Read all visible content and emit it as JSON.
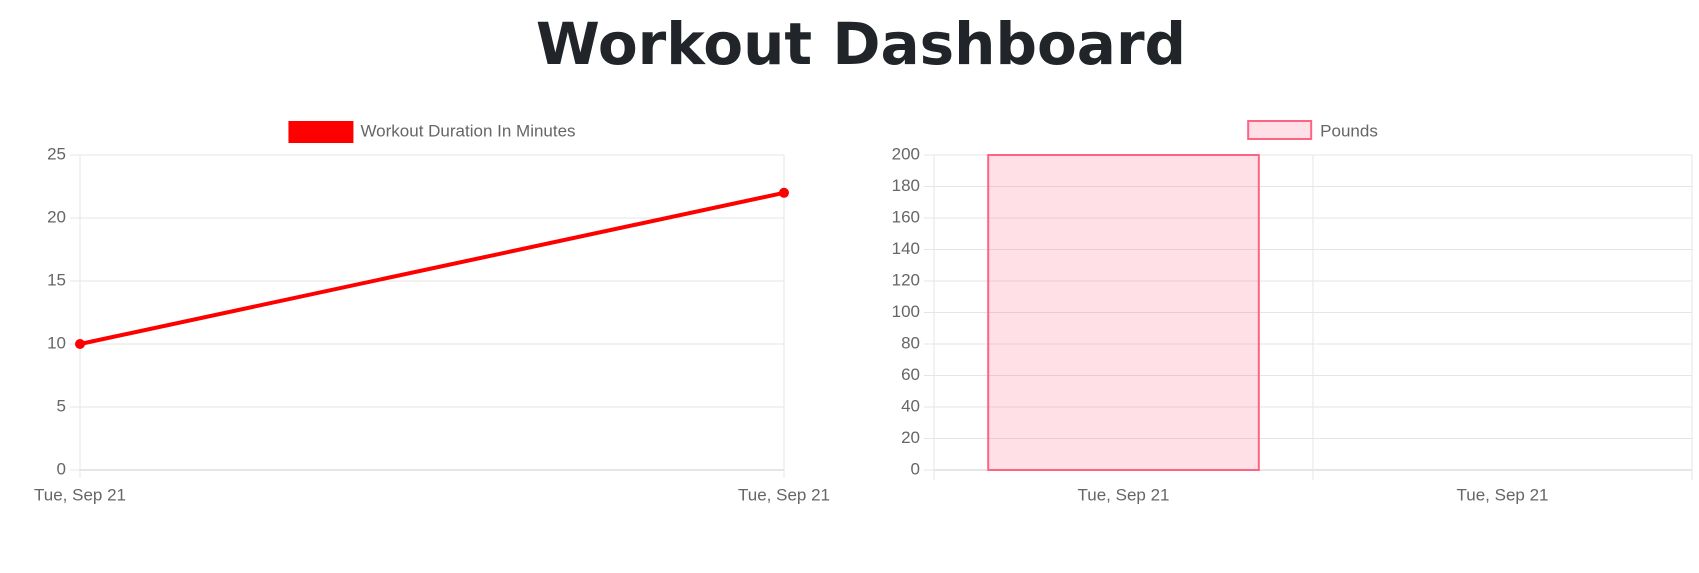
{
  "title": "Workout Dashboard",
  "chart_data": [
    {
      "type": "line",
      "categories": [
        "Tue, Sep 21",
        "Tue, Sep 21"
      ],
      "series": [
        {
          "name": "Workout Duration In Minutes",
          "color": "#ff0000",
          "values": [
            10,
            22
          ]
        }
      ],
      "ylim": [
        0,
        25
      ],
      "yticks": [
        0,
        5,
        10,
        15,
        20,
        25
      ],
      "grid": true,
      "legend": "top"
    },
    {
      "type": "bar",
      "categories": [
        "Tue, Sep 21",
        "Tue, Sep 21"
      ],
      "series": [
        {
          "name": "Pounds",
          "color": "rgba(255, 99, 132, 0.2)",
          "border_color": "rgb(255, 99, 132)",
          "values": [
            200,
            null
          ]
        }
      ],
      "ylim": [
        0,
        200
      ],
      "yticks": [
        0,
        20,
        40,
        60,
        80,
        100,
        120,
        140,
        160,
        180,
        200
      ],
      "grid": true,
      "legend": "top"
    }
  ]
}
